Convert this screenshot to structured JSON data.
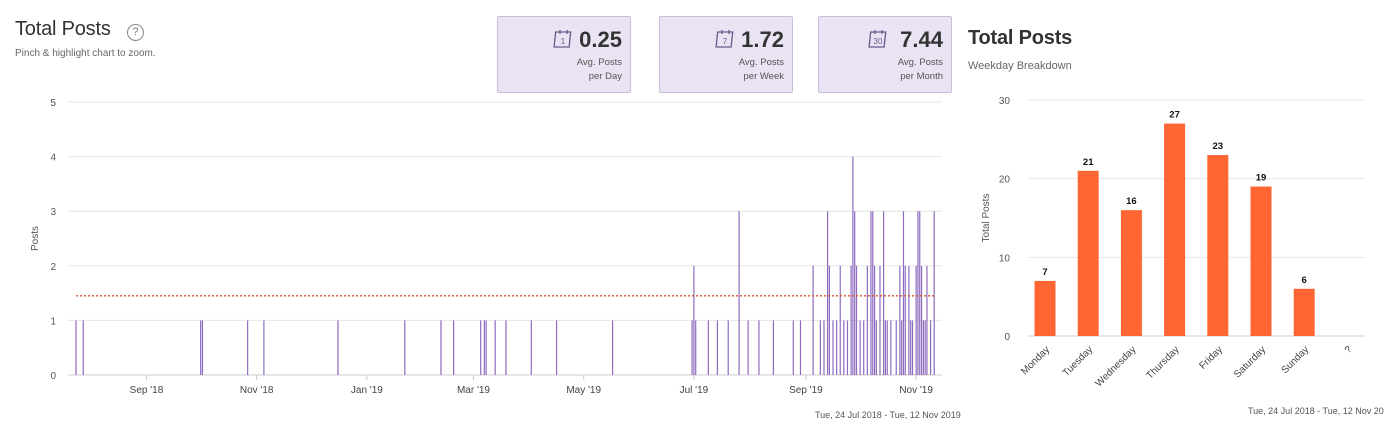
{
  "left_panel": {
    "title": "Total Posts",
    "help_icon": "question-circle-icon",
    "hint": "Pinch & highlight chart to zoom.",
    "stats": [
      {
        "icon": "calendar-1-icon",
        "icon_text": "1",
        "value": "0.25",
        "label1": "Avg. Posts",
        "label2": "per Day"
      },
      {
        "icon": "calendar-7-icon",
        "icon_text": "7",
        "value": "1.72",
        "label1": "Avg. Posts",
        "label2": "per Week"
      },
      {
        "icon": "calendar-30-icon",
        "icon_text": "30",
        "value": "7.44",
        "label1": "Avg. Posts",
        "label2": "per Month"
      }
    ],
    "date_range": "Tue, 24 Jul 2018 - Tue, 12 Nov 2019"
  },
  "right_panel": {
    "title": "Total Posts",
    "subtitle": "Weekday Breakdown",
    "date_range": "Tue, 24 Jul 2018 - Tue, 12 Nov 20"
  },
  "chart_data": [
    {
      "type": "bar",
      "title": "",
      "ylabel": "Posts",
      "xlabel": "",
      "ylim": [
        0,
        5
      ],
      "yticks": [
        0,
        1,
        2,
        3,
        4,
        5
      ],
      "xlim": [
        "2018-07-24",
        "2019-11-12"
      ],
      "xticks": [
        {
          "label": "Sep '18",
          "date": "2018-09-01"
        },
        {
          "label": "Nov '18",
          "date": "2018-11-01"
        },
        {
          "label": "Jan '19",
          "date": "2019-01-01"
        },
        {
          "label": "Mar '19",
          "date": "2019-03-01"
        },
        {
          "label": "May '19",
          "date": "2019-05-01"
        },
        {
          "label": "Jul '19",
          "date": "2019-07-01"
        },
        {
          "label": "Sep '19",
          "date": "2019-09-01"
        },
        {
          "label": "Nov '19",
          "date": "2019-11-01"
        }
      ],
      "average_line": 1.45,
      "grid": true,
      "bar_color": "#8e6bbf",
      "average_color": "#e0522d",
      "points": [
        {
          "date": "2018-07-24",
          "value": 1
        },
        {
          "date": "2018-07-28",
          "value": 1
        },
        {
          "date": "2018-10-01",
          "value": 1
        },
        {
          "date": "2018-10-02",
          "value": 1
        },
        {
          "date": "2018-10-27",
          "value": 1
        },
        {
          "date": "2018-11-05",
          "value": 1
        },
        {
          "date": "2018-12-16",
          "value": 1
        },
        {
          "date": "2019-01-22",
          "value": 1
        },
        {
          "date": "2019-02-11",
          "value": 1
        },
        {
          "date": "2019-02-18",
          "value": 1
        },
        {
          "date": "2019-03-05",
          "value": 1
        },
        {
          "date": "2019-03-07",
          "value": 1
        },
        {
          "date": "2019-03-08",
          "value": 1
        },
        {
          "date": "2019-03-13",
          "value": 1
        },
        {
          "date": "2019-03-19",
          "value": 1
        },
        {
          "date": "2019-04-02",
          "value": 1
        },
        {
          "date": "2019-04-16",
          "value": 1
        },
        {
          "date": "2019-05-17",
          "value": 1
        },
        {
          "date": "2019-06-30",
          "value": 1
        },
        {
          "date": "2019-07-01",
          "value": 2
        },
        {
          "date": "2019-07-02",
          "value": 1
        },
        {
          "date": "2019-07-09",
          "value": 1
        },
        {
          "date": "2019-07-14",
          "value": 1
        },
        {
          "date": "2019-07-20",
          "value": 1
        },
        {
          "date": "2019-07-26",
          "value": 3
        },
        {
          "date": "2019-07-31",
          "value": 1
        },
        {
          "date": "2019-08-06",
          "value": 1
        },
        {
          "date": "2019-08-14",
          "value": 1
        },
        {
          "date": "2019-08-25",
          "value": 1
        },
        {
          "date": "2019-08-29",
          "value": 1
        },
        {
          "date": "2019-09-05",
          "value": 2
        },
        {
          "date": "2019-09-09",
          "value": 1
        },
        {
          "date": "2019-09-11",
          "value": 1
        },
        {
          "date": "2019-09-13",
          "value": 3
        },
        {
          "date": "2019-09-14",
          "value": 2
        },
        {
          "date": "2019-09-16",
          "value": 1
        },
        {
          "date": "2019-09-18",
          "value": 1
        },
        {
          "date": "2019-09-20",
          "value": 2
        },
        {
          "date": "2019-09-22",
          "value": 1
        },
        {
          "date": "2019-09-24",
          "value": 1
        },
        {
          "date": "2019-09-26",
          "value": 2
        },
        {
          "date": "2019-09-27",
          "value": 4
        },
        {
          "date": "2019-09-28",
          "value": 3
        },
        {
          "date": "2019-09-29",
          "value": 2
        },
        {
          "date": "2019-10-01",
          "value": 1
        },
        {
          "date": "2019-10-03",
          "value": 1
        },
        {
          "date": "2019-10-05",
          "value": 2
        },
        {
          "date": "2019-10-07",
          "value": 3
        },
        {
          "date": "2019-10-08",
          "value": 3
        },
        {
          "date": "2019-10-09",
          "value": 2
        },
        {
          "date": "2019-10-10",
          "value": 1
        },
        {
          "date": "2019-10-12",
          "value": 2
        },
        {
          "date": "2019-10-14",
          "value": 3
        },
        {
          "date": "2019-10-15",
          "value": 1
        },
        {
          "date": "2019-10-16",
          "value": 1
        },
        {
          "date": "2019-10-18",
          "value": 1
        },
        {
          "date": "2019-10-21",
          "value": 1
        },
        {
          "date": "2019-10-23",
          "value": 2
        },
        {
          "date": "2019-10-24",
          "value": 1
        },
        {
          "date": "2019-10-25",
          "value": 3
        },
        {
          "date": "2019-10-26",
          "value": 2
        },
        {
          "date": "2019-10-28",
          "value": 2
        },
        {
          "date": "2019-10-29",
          "value": 1
        },
        {
          "date": "2019-10-30",
          "value": 1
        },
        {
          "date": "2019-11-01",
          "value": 2
        },
        {
          "date": "2019-11-02",
          "value": 3
        },
        {
          "date": "2019-11-03",
          "value": 3
        },
        {
          "date": "2019-11-04",
          "value": 2
        },
        {
          "date": "2019-11-05",
          "value": 1
        },
        {
          "date": "2019-11-06",
          "value": 1
        },
        {
          "date": "2019-11-07",
          "value": 2
        },
        {
          "date": "2019-11-09",
          "value": 1
        },
        {
          "date": "2019-11-11",
          "value": 3
        }
      ]
    },
    {
      "type": "bar",
      "title": "",
      "ylabel": "Total Posts",
      "xlabel": "",
      "ylim": [
        0,
        30
      ],
      "yticks": [
        0,
        10,
        20,
        30
      ],
      "categories": [
        "Monday",
        "Tuesday",
        "Wednesday",
        "Thursday",
        "Friday",
        "Saturday",
        "Sunday",
        "?"
      ],
      "values": [
        7,
        21,
        16,
        27,
        23,
        19,
        6,
        null
      ],
      "data_labels": [
        "7",
        "21",
        "16",
        "27",
        "23",
        "19",
        "6",
        ""
      ],
      "grid": true,
      "bar_color": "#ff6633"
    }
  ]
}
